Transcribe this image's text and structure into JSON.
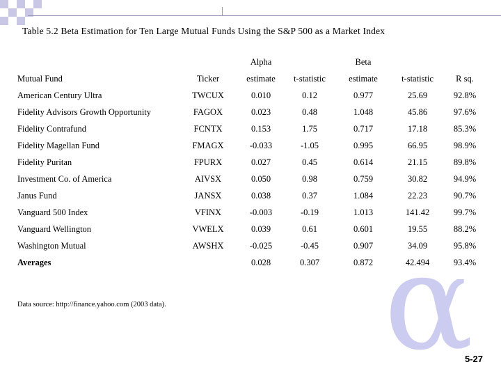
{
  "title": "Table 5.2 Beta Estimation for Ten Large Mutual Funds Using the S&P 500 as a Market Index",
  "headers": {
    "group_alpha": "Alpha",
    "group_beta": "Beta",
    "fund": "Mutual Fund",
    "ticker": "Ticker",
    "alpha_estimate": "estimate",
    "alpha_t": "t-statistic",
    "beta_estimate": "estimate",
    "beta_t": "t-statistic",
    "r_sq": "R sq."
  },
  "rows": [
    {
      "fund": "American Century Ultra",
      "ticker": "TWCUX",
      "alpha": "0.010",
      "alpha_t": "0.12",
      "beta": "0.977",
      "beta_t": "25.69",
      "rsq": "92.8%"
    },
    {
      "fund": "Fidelity Advisors Growth Opportunity",
      "ticker": "FAGOX",
      "alpha": "0.023",
      "alpha_t": "0.48",
      "beta": "1.048",
      "beta_t": "45.86",
      "rsq": "97.6%"
    },
    {
      "fund": "Fidelity Contrafund",
      "ticker": "FCNTX",
      "alpha": "0.153",
      "alpha_t": "1.75",
      "beta": "0.717",
      "beta_t": "17.18",
      "rsq": "85.3%"
    },
    {
      "fund": "Fidelity Magellan Fund",
      "ticker": "FMAGX",
      "alpha": "-0.033",
      "alpha_t": "-1.05",
      "beta": "0.995",
      "beta_t": "66.95",
      "rsq": "98.9%"
    },
    {
      "fund": "Fidelity Puritan",
      "ticker": "FPURX",
      "alpha": "0.027",
      "alpha_t": "0.45",
      "beta": "0.614",
      "beta_t": "21.15",
      "rsq": "89.8%"
    },
    {
      "fund": "Investment Co. of America",
      "ticker": "AIVSX",
      "alpha": "0.050",
      "alpha_t": "0.98",
      "beta": "0.759",
      "beta_t": "30.82",
      "rsq": "94.9%"
    },
    {
      "fund": "Janus Fund",
      "ticker": "JANSX",
      "alpha": "0.038",
      "alpha_t": "0.37",
      "beta": "1.084",
      "beta_t": "22.23",
      "rsq": "90.7%"
    },
    {
      "fund": "Vanguard 500 Index",
      "ticker": "VFINX",
      "alpha": "-0.003",
      "alpha_t": "-0.19",
      "beta": "1.013",
      "beta_t": "141.42",
      "rsq": "99.7%"
    },
    {
      "fund": "Vanguard Wellington",
      "ticker": "VWELX",
      "alpha": "0.039",
      "alpha_t": "0.61",
      "beta": "0.601",
      "beta_t": "19.55",
      "rsq": "88.2%"
    },
    {
      "fund": "Washington Mutual",
      "ticker": "AWSHX",
      "alpha": "-0.025",
      "alpha_t": "-0.45",
      "beta": "0.907",
      "beta_t": "34.09",
      "rsq": "95.8%"
    }
  ],
  "averages": {
    "label": "Averages",
    "alpha": "0.028",
    "alpha_t": "0.307",
    "beta": "0.872",
    "beta_t": "42.494",
    "rsq": "93.4%"
  },
  "source": "Data source: http://finance.yahoo.com (2003 data).",
  "page_number": "5-27",
  "colors": {
    "checker": "#c8c8e6",
    "alpha_glyph": "#ccccf0"
  }
}
